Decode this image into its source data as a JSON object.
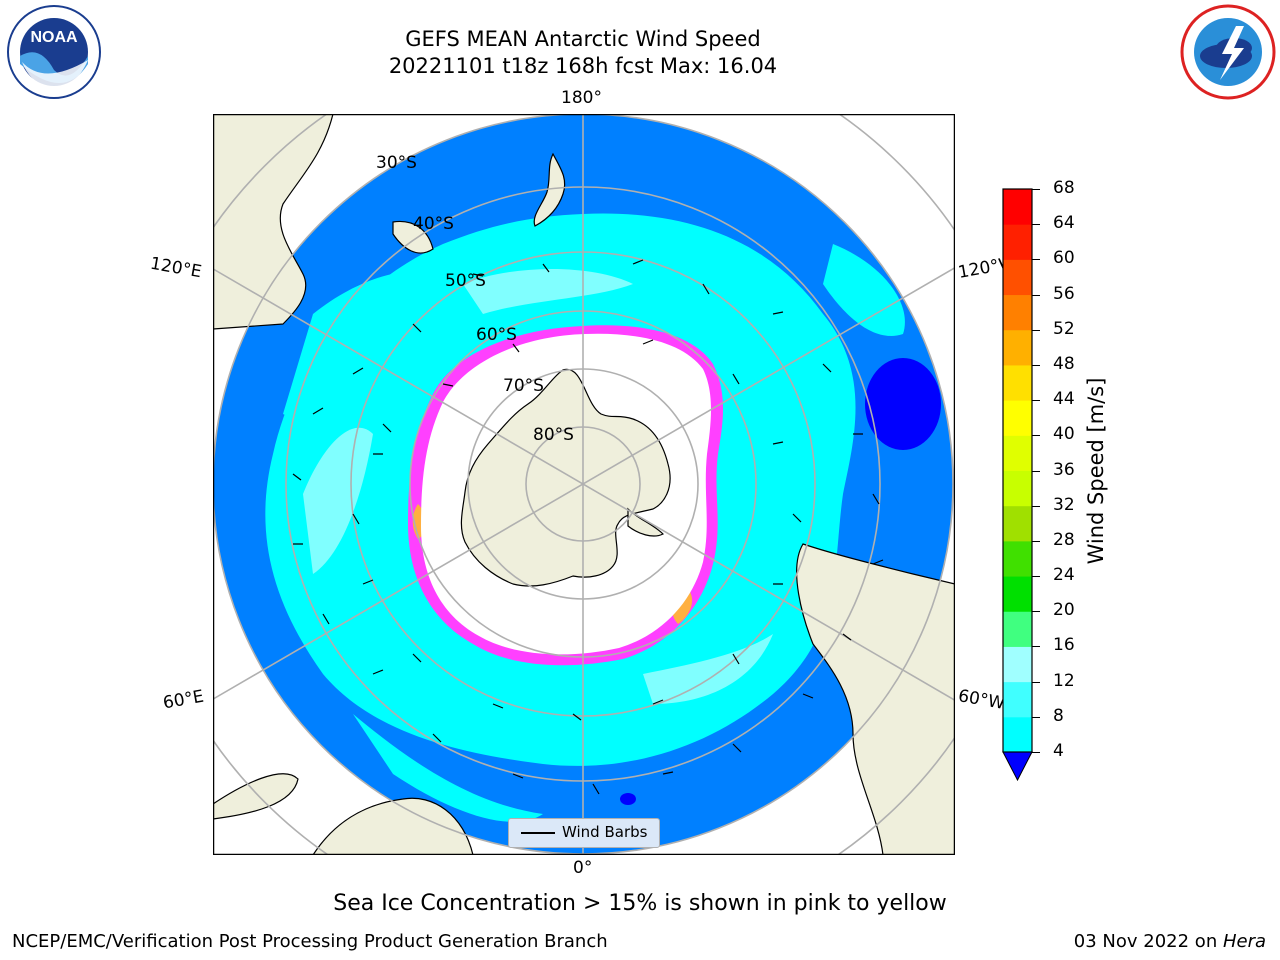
{
  "title": "GEFS MEAN Antarctic Wind Speed",
  "subtitle": "20221101 t18z 168h fcst   Max: 16.04",
  "logos": {
    "left": "noara-logo",
    "right": "nws-logo",
    "left_text": "NOAA"
  },
  "map": {
    "longitude_labels": [
      "180°",
      "120°E",
      "120°W",
      "60°E",
      "60°W",
      "0°"
    ],
    "latitude_labels": [
      "30°S",
      "40°S",
      "50°S",
      "60°S",
      "70°S",
      "80°S"
    ],
    "legend_label": "Wind Barbs",
    "colors": {
      "ocean_low": "#0080ff",
      "ocean_mid": "#00ffff",
      "ocean_high": "#80ffff",
      "ocean_min": "#0000ff",
      "land": "#efefdc",
      "ice_edge": "#ff40ff",
      "ice_yellow": "#ffb040"
    }
  },
  "colorbar": {
    "label": "Wind Speed [m/s]",
    "ticks": [
      "4",
      "8",
      "12",
      "16",
      "20",
      "24",
      "28",
      "32",
      "36",
      "40",
      "44",
      "48",
      "52",
      "56",
      "60",
      "64",
      "68"
    ],
    "colors": [
      "#0080ff",
      "#00ffff",
      "#40ffff",
      "#a0ffff",
      "#40ff80",
      "#00e000",
      "#40e000",
      "#a0e000",
      "#c8ff00",
      "#e0ff00",
      "#ffff00",
      "#ffe000",
      "#ffb000",
      "#ff8000",
      "#ff5000",
      "#ff2000",
      "#ff0000"
    ],
    "extend_color": "#0000ff"
  },
  "caption": "Sea Ice Concentration > 15% is shown in pink to yellow",
  "credit_left": "NCEP/EMC/Verification Post Processing Product Generation Branch",
  "credit_right_date": "03 Nov 2022 on ",
  "credit_right_host": "Hera"
}
